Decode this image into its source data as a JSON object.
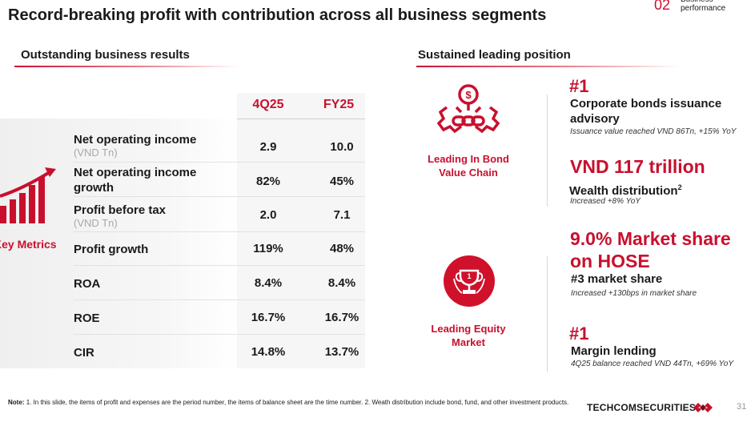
{
  "header": {
    "title": "Record-breaking profit with contribution across all business segments",
    "section_number": "02",
    "section_label": "Business performance"
  },
  "left": {
    "heading": "Outstanding business results",
    "key_metrics_label": "Key Metrics",
    "columns": [
      "4Q25",
      "FY25"
    ],
    "rows": [
      {
        "label": "Net operating income",
        "unit": "(VND Tn)",
        "q": "2.9",
        "fy": "10.0"
      },
      {
        "label": "Net operating income growth",
        "unit": "",
        "q": "82%",
        "fy": "45%"
      },
      {
        "label": "Profit before tax",
        "unit": "(VND Tn)",
        "q": "2.0",
        "fy": "7.1"
      },
      {
        "label": "Profit growth",
        "unit": "",
        "q": "119%",
        "fy": "48%"
      },
      {
        "label": "ROA",
        "unit": "",
        "q": "8.4%",
        "fy": "8.4%"
      },
      {
        "label": "ROE",
        "unit": "",
        "q": "16.7%",
        "fy": "16.7%"
      },
      {
        "label": "CIR",
        "unit": "",
        "q": "14.8%",
        "fy": "13.7%"
      }
    ]
  },
  "right": {
    "heading": "Sustained leading position",
    "bond_icon_label": "Leading In Bond Value Chain",
    "equity_icon_label": "Leading Equity Market",
    "points": [
      {
        "headline": "#1",
        "title": "Corporate bonds issuance advisory",
        "sub": "Issuance value reached VND 86Tn, +15% YoY"
      },
      {
        "headline": "VND 117 trillion",
        "title": "Wealth distribution",
        "title_sup": "2",
        "sub": "Increased +8% YoY"
      },
      {
        "headline": "9.0% Market share on HOSE",
        "title": "#3 market share",
        "sub": "Increased +130bps in market share"
      },
      {
        "headline": "#1",
        "title": "Margin lending",
        "sub": "4Q25 balance reached VND 44Tn, +69% YoY"
      }
    ]
  },
  "footer": {
    "note_label": "Note:",
    "note": "1. In this slide, the items of profit and expenses are the period number, the items of balance sheet are the time number. 2. Weath distribution include bond, fund, and other investment products.",
    "brand": "TECHCOMSECURITIES",
    "page": "31"
  },
  "colors": {
    "accent": "#c8102e",
    "text": "#1a1a1a",
    "muted": "#a8a8a8"
  }
}
